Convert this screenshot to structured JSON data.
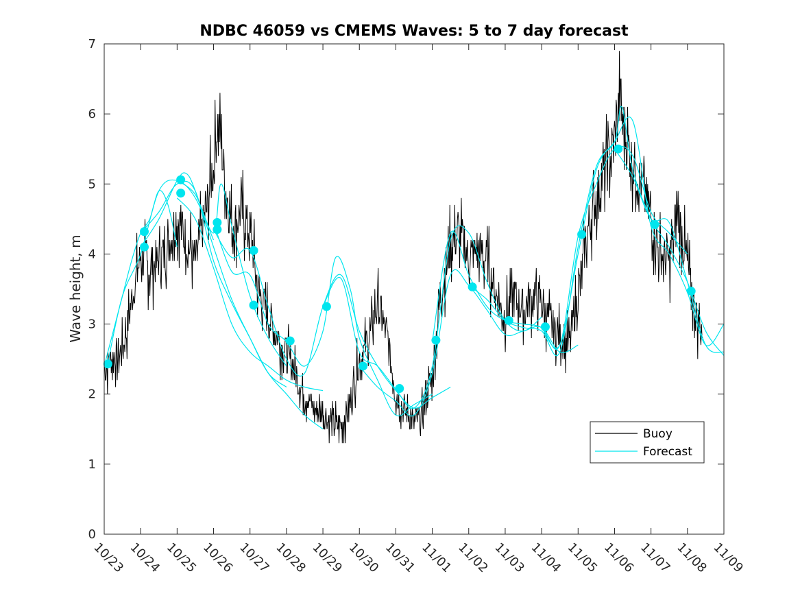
{
  "chart_data": {
    "type": "line",
    "title": "NDBC 46059 vs CMEMS Waves: 5 to 7 day forecast",
    "xlabel": "",
    "ylabel": "Wave height, m",
    "xlim": [
      0,
      17
    ],
    "ylim": [
      0,
      7
    ],
    "x_ticks": [
      0,
      1,
      2,
      3,
      4,
      5,
      6,
      7,
      8,
      9,
      10,
      11,
      12,
      13,
      14,
      15,
      16,
      17
    ],
    "x_tick_labels": [
      "10/23",
      "10/24",
      "10/25",
      "10/26",
      "10/27",
      "10/28",
      "10/29",
      "10/30",
      "10/31",
      "11/01",
      "11/02",
      "11/03",
      "11/04",
      "11/05",
      "11/06",
      "11/07",
      "11/08",
      "11/09"
    ],
    "y_ticks": [
      0,
      1,
      2,
      3,
      4,
      5,
      6,
      7
    ],
    "y_tick_labels": [
      "0",
      "1",
      "2",
      "3",
      "4",
      "5",
      "6",
      "7"
    ],
    "legend": {
      "position": "bottom-right",
      "entries": [
        {
          "label": "Buoy",
          "color": "#000000"
        },
        {
          "label": "Forecast",
          "color": "#00e5ee"
        }
      ]
    },
    "colors": {
      "buoy": "#000000",
      "forecast": "#00e5ee",
      "axes": "#262626"
    },
    "buoy_envelope": [
      [
        0.0,
        2.4
      ],
      [
        0.25,
        2.5
      ],
      [
        0.5,
        2.6
      ],
      [
        0.75,
        3.3
      ],
      [
        1.0,
        4.0
      ],
      [
        1.25,
        3.8
      ],
      [
        1.5,
        3.9
      ],
      [
        1.75,
        4.1
      ],
      [
        2.0,
        4.5
      ],
      [
        2.25,
        4.2
      ],
      [
        2.5,
        3.9
      ],
      [
        2.75,
        4.5
      ],
      [
        3.0,
        5.2
      ],
      [
        3.1,
        5.9
      ],
      [
        3.2,
        5.6
      ],
      [
        3.35,
        4.9
      ],
      [
        3.5,
        4.4
      ],
      [
        3.75,
        4.6
      ],
      [
        4.0,
        4.3
      ],
      [
        4.25,
        3.4
      ],
      [
        4.5,
        3.1
      ],
      [
        4.75,
        2.8
      ],
      [
        5.0,
        2.6
      ],
      [
        5.25,
        2.3
      ],
      [
        5.5,
        2.0
      ],
      [
        5.75,
        1.8
      ],
      [
        6.0,
        1.7
      ],
      [
        6.25,
        1.6
      ],
      [
        6.5,
        1.55
      ],
      [
        6.75,
        1.9
      ],
      [
        7.0,
        2.5
      ],
      [
        7.25,
        2.75
      ],
      [
        7.5,
        3.3
      ],
      [
        7.75,
        2.8
      ],
      [
        8.0,
        2.0
      ],
      [
        8.25,
        1.75
      ],
      [
        8.5,
        1.6
      ],
      [
        8.75,
        1.7
      ],
      [
        9.0,
        2.3
      ],
      [
        9.25,
        3.5
      ],
      [
        9.5,
        4.1
      ],
      [
        9.75,
        4.3
      ],
      [
        10.0,
        3.9
      ],
      [
        10.25,
        4.1
      ],
      [
        10.5,
        3.9
      ],
      [
        10.75,
        3.4
      ],
      [
        11.0,
        3.1
      ],
      [
        11.25,
        3.4
      ],
      [
        11.5,
        3.2
      ],
      [
        11.75,
        3.4
      ],
      [
        12.0,
        3.3
      ],
      [
        12.25,
        3.0
      ],
      [
        12.5,
        2.8
      ],
      [
        12.75,
        2.7
      ],
      [
        13.0,
        3.4
      ],
      [
        13.25,
        4.3
      ],
      [
        13.5,
        4.8
      ],
      [
        13.75,
        5.2
      ],
      [
        14.0,
        5.6
      ],
      [
        14.15,
        6.2
      ],
      [
        14.25,
        5.8
      ],
      [
        14.5,
        5.3
      ],
      [
        14.75,
        5.0
      ],
      [
        15.0,
        4.5
      ],
      [
        15.25,
        4.0
      ],
      [
        15.5,
        3.9
      ],
      [
        15.75,
        4.6
      ],
      [
        16.0,
        3.8
      ],
      [
        16.25,
        3.1
      ],
      [
        16.4,
        2.9
      ]
    ],
    "forecast_runs": [
      {
        "x": [
          0.0,
          0.25,
          0.5,
          0.75,
          1.0,
          1.25,
          1.5,
          1.75,
          2.0
        ],
        "y": [
          2.4,
          2.9,
          3.4,
          3.9,
          4.3,
          4.5,
          4.9,
          4.7,
          4.1
        ]
      },
      {
        "x": [
          0.1,
          0.5,
          1.0,
          1.5,
          2.0,
          2.5,
          3.0
        ],
        "y": [
          2.45,
          3.4,
          4.0,
          4.9,
          5.05,
          4.8,
          4.2
        ]
      },
      {
        "x": [
          1.0,
          1.5,
          2.0,
          2.25,
          2.5,
          3.0,
          3.5,
          4.0,
          4.5,
          5.0
        ],
        "y": [
          4.1,
          4.5,
          5.05,
          5.15,
          4.9,
          4.1,
          3.35,
          2.8,
          2.3,
          2.1
        ]
      },
      {
        "x": [
          1.0,
          1.5,
          2.0,
          2.5,
          3.0,
          3.5,
          4.0,
          4.5,
          5.0,
          5.5,
          6.0
        ],
        "y": [
          4.3,
          4.6,
          5.0,
          4.9,
          3.9,
          3.3,
          2.8,
          2.3,
          2.0,
          1.7,
          1.5
        ]
      },
      {
        "x": [
          2.0,
          2.5,
          3.0,
          3.5,
          4.0,
          4.5,
          5.0,
          5.5,
          6.0
        ],
        "y": [
          4.8,
          4.5,
          3.8,
          3.0,
          2.6,
          2.4,
          2.2,
          2.1,
          2.05
        ]
      },
      {
        "x": [
          2.0,
          2.5,
          3.0,
          3.2,
          3.5,
          4.0,
          4.5,
          5.0
        ],
        "y": [
          5.05,
          4.85,
          4.3,
          5.0,
          4.4,
          3.4,
          2.8,
          2.4
        ]
      },
      {
        "x": [
          3.0,
          3.5,
          4.0,
          4.5,
          5.0,
          5.5,
          6.0,
          6.35,
          6.75,
          7.0,
          7.5,
          8.0,
          8.5,
          9.0
        ],
        "y": [
          4.45,
          3.75,
          3.7,
          3.0,
          2.75,
          2.4,
          2.9,
          3.95,
          3.5,
          2.8,
          2.2,
          1.7,
          1.85,
          2.0
        ]
      },
      {
        "x": [
          3.0,
          3.5,
          4.0,
          4.5,
          5.0,
          5.5,
          6.0,
          6.5,
          7.0,
          7.5,
          8.0,
          8.5,
          9.0,
          9.5
        ],
        "y": [
          4.35,
          3.95,
          4.05,
          3.25,
          2.5,
          2.3,
          3.25,
          3.7,
          2.9,
          2.4,
          2.05,
          1.8,
          1.95,
          2.1
        ]
      },
      {
        "x": [
          6.0,
          6.5,
          7.0,
          7.5,
          8.0,
          8.5,
          9.0,
          9.5,
          10.0,
          10.5,
          11.0,
          11.5,
          12.0
        ],
        "y": [
          3.25,
          3.65,
          2.6,
          2.4,
          2.07,
          1.8,
          2.4,
          4.2,
          4.3,
          3.6,
          3.05,
          2.9,
          3.1
        ]
      },
      {
        "x": [
          7.0,
          7.5,
          8.0,
          8.5,
          9.0,
          9.5,
          10.0,
          10.5,
          11.0,
          11.5,
          12.0,
          12.5,
          13.0
        ],
        "y": [
          2.4,
          2.1,
          1.9,
          1.7,
          2.3,
          3.7,
          3.55,
          3.2,
          2.85,
          2.9,
          2.95,
          2.6,
          2.7
        ]
      },
      {
        "x": [
          9.0,
          9.5,
          10.0,
          10.5,
          11.0,
          11.5,
          12.0,
          12.5,
          13.0,
          13.5,
          14.0,
          14.5,
          15.0,
          15.5,
          16.0
        ],
        "y": [
          2.75,
          4.3,
          3.7,
          3.25,
          3.05,
          3.0,
          2.95,
          2.7,
          4.25,
          5.0,
          5.5,
          5.4,
          4.6,
          4.3,
          4.0
        ]
      },
      {
        "x": [
          10.0,
          10.5,
          11.0,
          11.5,
          12.0,
          12.5,
          13.0,
          13.5,
          14.0,
          14.2,
          14.5,
          15.0,
          15.5,
          16.0,
          16.5,
          17.0
        ],
        "y": [
          3.55,
          3.35,
          3.05,
          2.95,
          2.9,
          2.6,
          4.1,
          5.25,
          5.6,
          6.1,
          5.2,
          4.5,
          4.1,
          3.6,
          2.9,
          2.55
        ]
      },
      {
        "x": [
          12.0,
          12.5,
          13.0,
          13.5,
          14.0,
          14.5,
          15.0,
          15.5,
          16.0,
          16.5,
          17.0
        ],
        "y": [
          2.95,
          2.7,
          4.0,
          5.2,
          5.6,
          5.9,
          4.4,
          4.0,
          3.45,
          2.7,
          3.0
        ]
      },
      {
        "x": [
          14.0,
          14.5,
          15.0,
          15.5,
          16.0,
          16.5,
          17.0
        ],
        "y": [
          5.5,
          5.1,
          4.5,
          4.45,
          3.6,
          2.7,
          2.6
        ]
      }
    ],
    "forecast_markers": {
      "x": [
        0.1,
        1.1,
        1.1,
        2.1,
        2.1,
        3.1,
        3.1,
        4.1,
        4.1,
        5.1,
        6.1,
        7.1,
        8.1,
        9.1,
        10.1,
        11.1,
        12.1,
        13.1,
        14.1,
        15.1,
        16.1
      ],
      "y": [
        2.43,
        4.32,
        4.1,
        5.06,
        4.87,
        4.45,
        4.35,
        4.05,
        3.27,
        2.76,
        3.25,
        2.4,
        2.08,
        2.77,
        3.53,
        3.05,
        2.96,
        4.28,
        5.5,
        4.42,
        3.47
      ]
    }
  }
}
